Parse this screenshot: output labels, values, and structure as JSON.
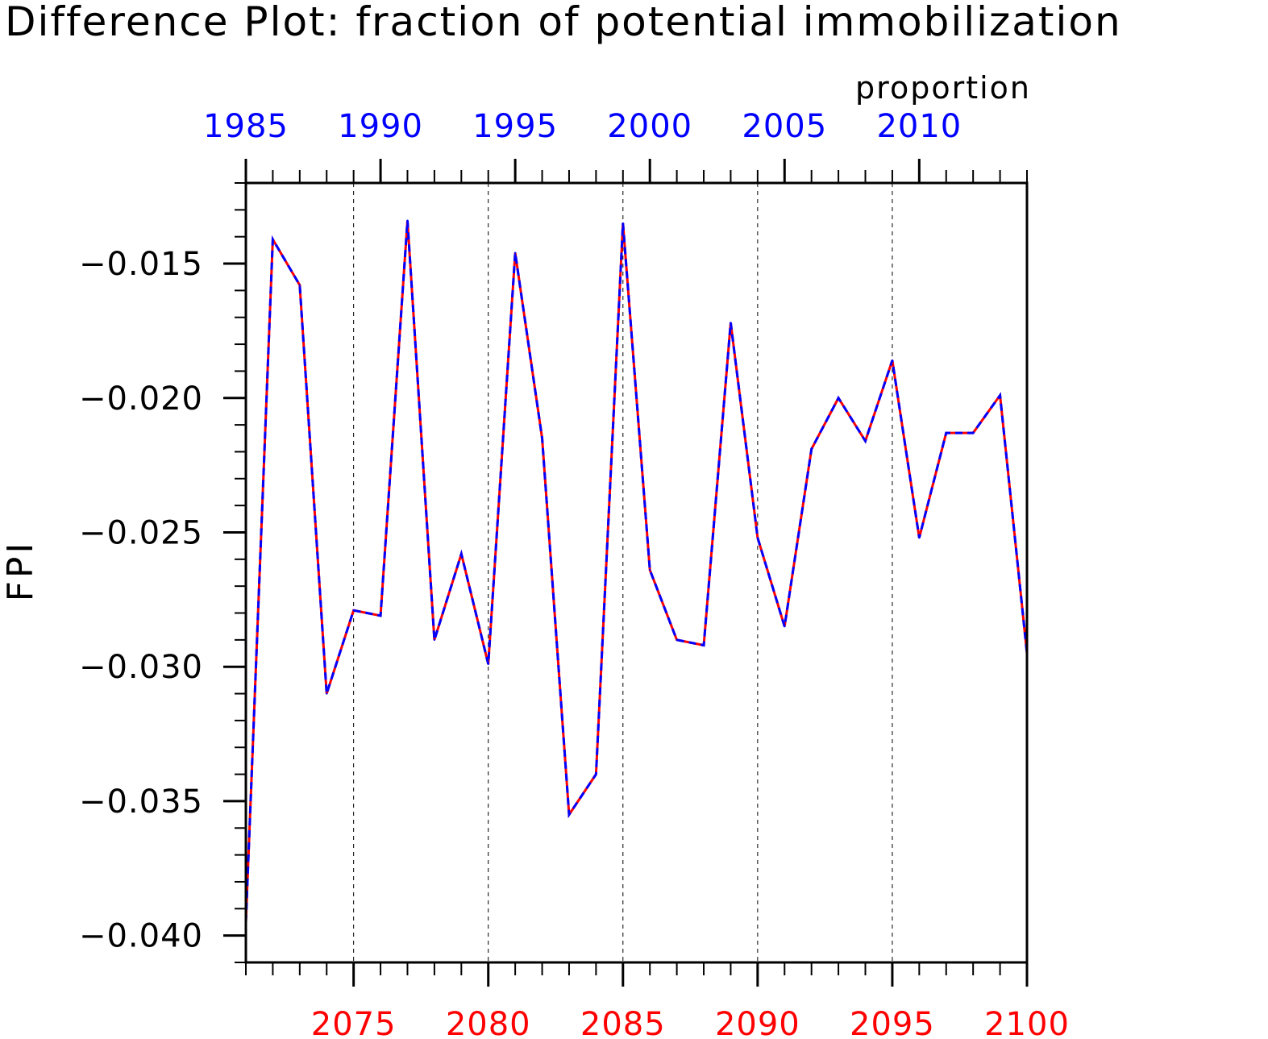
{
  "chart_data": {
    "type": "line",
    "title": "Difference Plot: fraction of potential immobilization",
    "units_label": "proportion",
    "ylabel": "FPI",
    "ylim": [
      -0.041,
      -0.012
    ],
    "y_ticks": [
      -0.04,
      -0.035,
      -0.03,
      -0.025,
      -0.02,
      -0.015
    ],
    "y_tick_labels": [
      "−0.040",
      "−0.035",
      "−0.030",
      "−0.025",
      "−0.020",
      "−0.015"
    ],
    "grid": "vertical dashed at major x ticks",
    "bottom_axis": {
      "range": [
        2071,
        2100
      ],
      "major_ticks": [
        2075,
        2080,
        2085,
        2090,
        2095,
        2100
      ],
      "labels": [
        "2075",
        "2080",
        "2085",
        "2090",
        "2095",
        "2100"
      ],
      "color": "#ff0000"
    },
    "top_axis": {
      "range": [
        1985,
        2014
      ],
      "major_ticks": [
        1985,
        1990,
        1995,
        2000,
        2005,
        2010
      ],
      "labels": [
        "1985",
        "1990",
        "1995",
        "2000",
        "2005",
        "2010"
      ],
      "color": "#0000ff"
    },
    "x": [
      2071,
      2072,
      2073,
      2074,
      2075,
      2076,
      2077,
      2078,
      2079,
      2080,
      2081,
      2082,
      2083,
      2084,
      2085,
      2086,
      2087,
      2088,
      2089,
      2090,
      2091,
      2092,
      2093,
      2094,
      2095,
      2096,
      2097,
      2098,
      2099,
      2100
    ],
    "series": [
      {
        "values": [
          -0.0395,
          -0.0141,
          -0.0158,
          -0.031,
          -0.0279,
          -0.0281,
          -0.0134,
          -0.029,
          -0.0258,
          -0.0299,
          -0.0146,
          -0.0215,
          -0.0355,
          -0.034,
          -0.0135,
          -0.0264,
          -0.029,
          -0.0292,
          -0.0172,
          -0.0252,
          -0.0285,
          -0.0219,
          -0.02,
          -0.0216,
          -0.0186,
          -0.0252,
          -0.0213,
          -0.0213,
          -0.0199,
          -0.0295
        ],
        "line_color": "#ff0000",
        "dash_color": "#0000ff",
        "style": "red solid with blue dashed overlay"
      }
    ]
  }
}
